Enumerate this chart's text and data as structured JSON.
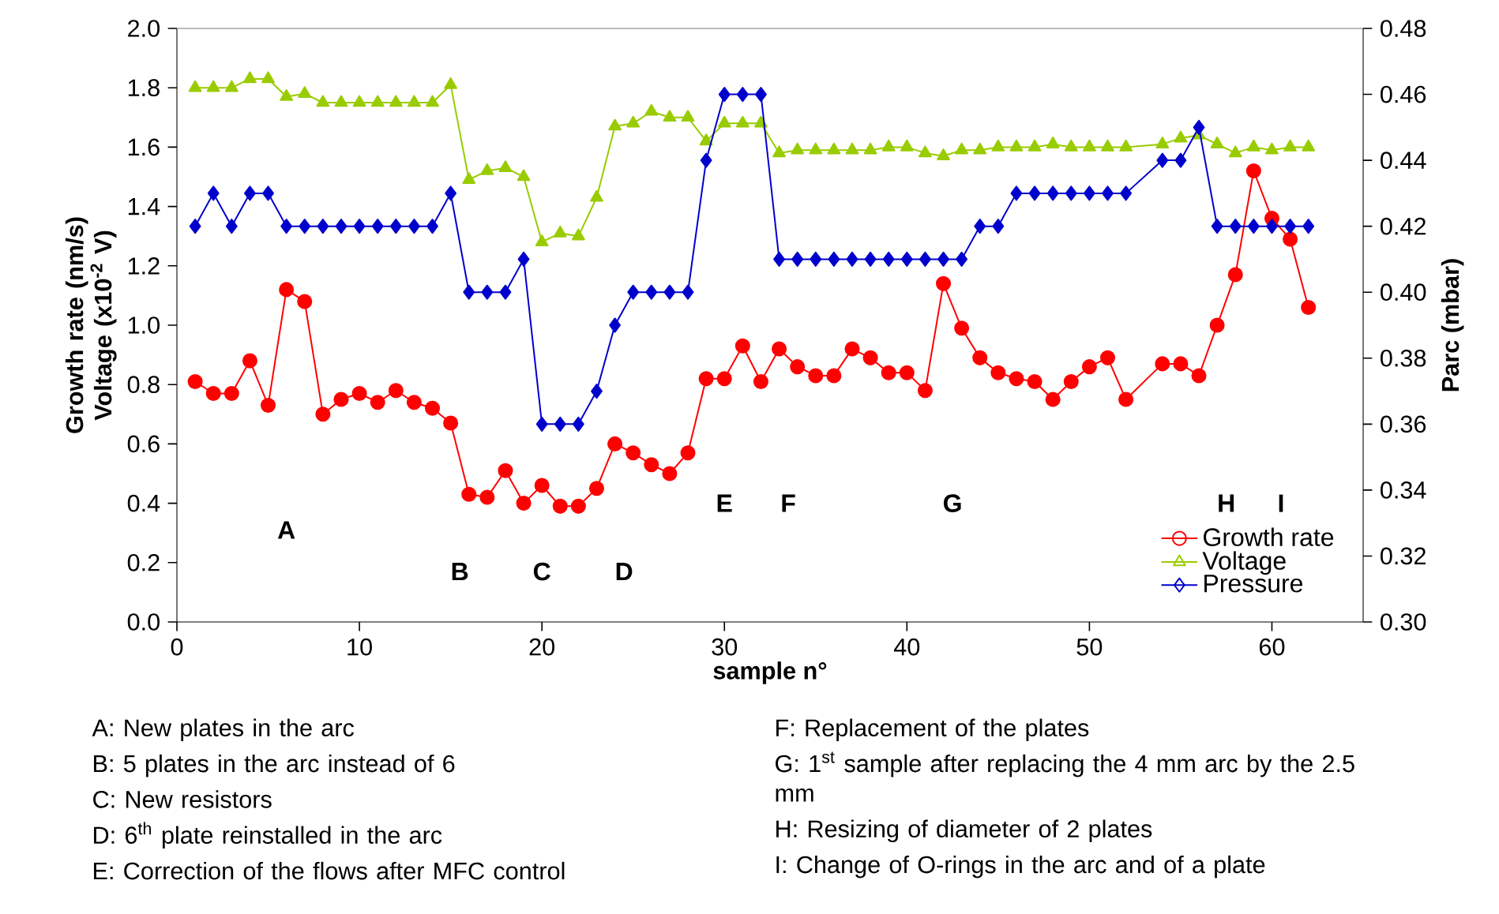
{
  "chart_data": {
    "type": "line",
    "xlabel": "sample n°",
    "ylabel": "Growth rate (nm/s) Voltage (x10$^{-2}$ V)",
    "y2label": "Parc (mbar)",
    "x": [
      1,
      2,
      3,
      4,
      5,
      6,
      7,
      8,
      9,
      10,
      11,
      12,
      13,
      14,
      15,
      16,
      17,
      18,
      19,
      20,
      21,
      22,
      23,
      24,
      25,
      26,
      27,
      28,
      29,
      30,
      31,
      32,
      33,
      34,
      35,
      36,
      37,
      38,
      39,
      40,
      41,
      42,
      43,
      44,
      45,
      46,
      47,
      48,
      49,
      50,
      51,
      52,
      54,
      55,
      56,
      57,
      58,
      59,
      60,
      61,
      62
    ],
    "series": [
      {
        "name": "Growth rate",
        "color": "#ff0000",
        "marker": "circle",
        "values": [
          0.81,
          0.77,
          0.77,
          0.88,
          0.73,
          1.12,
          1.08,
          0.7,
          0.75,
          0.77,
          0.74,
          0.78,
          0.74,
          0.72,
          0.67,
          0.43,
          0.42,
          0.51,
          0.4,
          0.46,
          0.39,
          0.39,
          0.45,
          0.6,
          0.57,
          0.53,
          0.5,
          0.57,
          0.82,
          0.82,
          0.93,
          0.81,
          0.92,
          0.86,
          0.83,
          0.83,
          0.92,
          0.89,
          0.84,
          0.84,
          0.78,
          1.14,
          0.99,
          0.89,
          0.84,
          0.82,
          0.81,
          0.75,
          0.81,
          0.86,
          0.89,
          0.75,
          0.87,
          0.87,
          0.83,
          1.0,
          1.17,
          1.52,
          1.36,
          1.29,
          1.06
        ]
      },
      {
        "name": "Voltage",
        "color": "#99cc00",
        "marker": "triangle",
        "values": [
          1.8,
          1.8,
          1.8,
          1.83,
          1.83,
          1.77,
          1.78,
          1.75,
          1.75,
          1.75,
          1.75,
          1.75,
          1.75,
          1.75,
          1.81,
          1.49,
          1.52,
          1.53,
          1.5,
          1.28,
          1.31,
          1.3,
          1.43,
          1.67,
          1.68,
          1.72,
          1.7,
          1.7,
          1.62,
          1.68,
          1.68,
          1.68,
          1.58,
          1.59,
          1.59,
          1.59,
          1.59,
          1.59,
          1.6,
          1.6,
          1.58,
          1.57,
          1.59,
          1.59,
          1.6,
          1.6,
          1.6,
          1.61,
          1.6,
          1.6,
          1.6,
          1.6,
          1.61,
          1.63,
          1.64,
          1.61,
          1.58,
          1.6,
          1.59,
          1.6,
          1.6
        ]
      },
      {
        "name": "Pressure",
        "color": "#0000cc",
        "marker": "diamond",
        "axis": "y2",
        "values": [
          0.42,
          0.43,
          0.42,
          0.43,
          0.43,
          0.42,
          0.42,
          0.42,
          0.42,
          0.42,
          0.42,
          0.42,
          0.42,
          0.42,
          0.43,
          0.4,
          0.4,
          0.4,
          0.41,
          0.36,
          0.36,
          0.36,
          0.37,
          0.39,
          0.4,
          0.4,
          0.4,
          0.4,
          0.44,
          0.46,
          0.46,
          0.46,
          0.41,
          0.41,
          0.41,
          0.41,
          0.41,
          0.41,
          0.41,
          0.41,
          0.41,
          0.41,
          0.41,
          0.42,
          0.42,
          0.43,
          0.43,
          0.43,
          0.43,
          0.43,
          0.43,
          0.43,
          0.44,
          0.44,
          0.45,
          0.42,
          0.42,
          0.42,
          0.42,
          0.42,
          0.42
        ]
      }
    ],
    "xlim": [
      0,
      65
    ],
    "xticks": [
      0,
      10,
      20,
      30,
      40,
      50,
      60
    ],
    "ylim": [
      0,
      2
    ],
    "yticks": [
      {
        "value": 0,
        "label": "0.0"
      },
      0.2,
      0.4,
      0.6,
      0.8,
      {
        "value": 1,
        "label": "1.0"
      },
      1.2,
      1.4,
      1.6,
      1.8,
      {
        "value": 2,
        "label": "2.0"
      }
    ],
    "y2lim": [
      0.3,
      0.48
    ],
    "y2ticks": [
      {
        "value": 0.3,
        "label": "0.30"
      },
      0.32,
      0.34,
      0.36,
      0.38,
      {
        "value": 0.4,
        "label": "0.40"
      },
      0.42,
      0.44,
      0.46,
      0.48
    ],
    "legend": "bottom right",
    "grid": false,
    "annotations": [
      "A",
      "B",
      "C",
      "D",
      "E",
      "F",
      "G",
      "H",
      "I",
      "A: New plates in the arc",
      "B: 5 plates in the arc instead of 6",
      "C: New resistors",
      "D: 6$^{th}$ plate reinstalled in the arc",
      "E: Correction of the flows after MFC control",
      "F: Replacement of the plates",
      "G: 1$^{st}$ sample after replacing the 4 mm arc by the 2.5 mm",
      "H: Resizing of diameter of 2 plates",
      "I: Change of O-rings in the arc and of a plate"
    ]
  }
}
